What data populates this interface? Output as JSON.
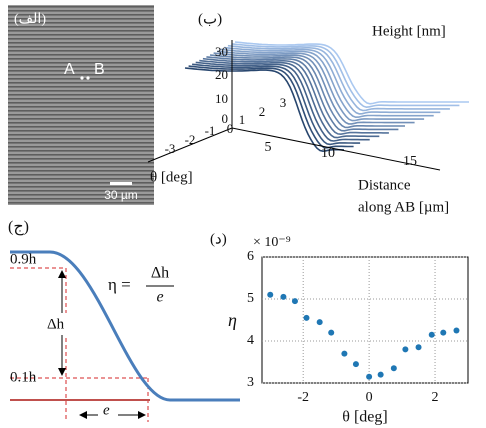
{
  "panel_a": {
    "label": "(الف)",
    "point_a": "A",
    "point_b": "B",
    "scale_bar": "30 µm"
  },
  "panel_b": {
    "label": "(ب)",
    "z_label": "Height [nm]",
    "theta_label": "θ [deg]",
    "distance_label": [
      "Distance",
      "along AB [µm]"
    ],
    "z_ticks": [
      30,
      20,
      10,
      0
    ],
    "theta_ticks": [
      -3,
      -2,
      -1,
      0,
      1,
      2,
      3
    ],
    "distance_ticks": [
      5,
      10,
      15
    ]
  },
  "panel_c": {
    "label": "(ج)",
    "upper_level": "0.9h",
    "lower_level": "0.1h",
    "height_diff": "Δh",
    "width": "e",
    "formula_lhs": "η =",
    "formula_num": "Δh",
    "formula_den": "e"
  },
  "chart_data": {
    "type": "scatter",
    "label": "(د)",
    "y_exponent": "× 10⁻⁹",
    "x_label": "θ [deg]",
    "y_label": "η",
    "color": "#1f77b4",
    "grid": true,
    "xlim": [
      -3.25,
      3
    ],
    "ylim": [
      3,
      6
    ],
    "xticks": [
      -2,
      0,
      2
    ],
    "yticks": [
      3,
      4,
      5,
      6
    ],
    "x": [
      -3.0,
      -2.6,
      -2.25,
      -1.9,
      -1.5,
      -1.15,
      -0.75,
      -0.4,
      0,
      0.35,
      0.75,
      1.1,
      1.5,
      1.9,
      2.25,
      2.65
    ],
    "values": [
      5.1,
      5.05,
      4.95,
      4.55,
      4.45,
      4.2,
      3.7,
      3.45,
      3.15,
      3.2,
      3.35,
      3.8,
      3.85,
      4.15,
      4.2,
      4.25
    ]
  }
}
